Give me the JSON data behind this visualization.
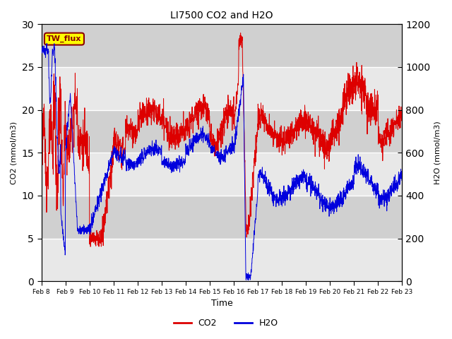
{
  "title": "LI7500 CO2 and H2O",
  "xlabel": "Time",
  "ylabel_left": "CO2 (mmol/m3)",
  "ylabel_right": "H2O (mmol/m3)",
  "ylim_left": [
    0,
    30
  ],
  "ylim_right": [
    0,
    1200
  ],
  "yticks_left": [
    0,
    5,
    10,
    15,
    20,
    25,
    30
  ],
  "yticks_right": [
    0,
    200,
    400,
    600,
    800,
    1000,
    1200
  ],
  "x_labels": [
    "Feb 8",
    "Feb 9",
    "Feb 10",
    "Feb 11",
    "Feb 12",
    "Feb 13",
    "Feb 14",
    "Feb 15",
    "Feb 16",
    "Feb 17",
    "Feb 18",
    "Feb 19",
    "Feb 20",
    "Feb 21",
    "Feb 22",
    "Feb 23"
  ],
  "annotation_text": "TW_flux",
  "co2_color": "#dd0000",
  "h2o_color": "#0000dd",
  "plot_bg_light": "#e8e8e8",
  "plot_bg_dark": "#d0d0d0",
  "grid_color": "#ffffff",
  "legend_co2": "CO2",
  "legend_h2o": "H2O",
  "fig_width": 6.4,
  "fig_height": 4.8,
  "dpi": 100
}
